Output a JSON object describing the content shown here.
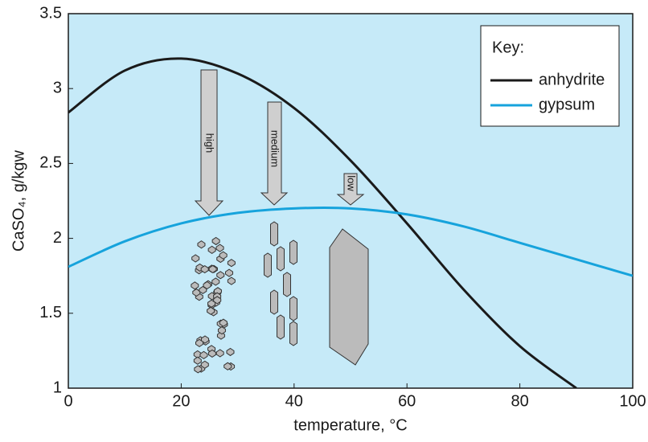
{
  "chart_data": {
    "type": "line",
    "x": [
      0,
      10,
      20,
      30,
      40,
      50,
      60,
      70,
      80,
      90,
      100
    ],
    "series": [
      {
        "name": "anhydrite",
        "color": "#1a1a1a",
        "values": [
          2.84,
          3.12,
          3.2,
          3.1,
          2.87,
          2.52,
          2.1,
          1.66,
          1.28,
          1.0,
          null
        ]
      },
      {
        "name": "gypsum",
        "color": "#16a3dc",
        "values": [
          1.81,
          1.98,
          2.1,
          2.17,
          2.2,
          2.2,
          2.16,
          2.08,
          1.97,
          1.86,
          1.75
        ]
      }
    ],
    "xlabel": "temperature, °C",
    "ylabel": "CaSO₄, g/kgw",
    "xlim": [
      0,
      100
    ],
    "xticks": [
      0,
      20,
      40,
      60,
      80,
      100
    ],
    "ylim": [
      1,
      3.5
    ],
    "yticks": [
      1,
      1.5,
      2,
      2.5,
      3,
      3.5
    ],
    "grid": false,
    "legend_title": "Key:",
    "annotations": [
      "high",
      "medium",
      "low"
    ]
  }
}
